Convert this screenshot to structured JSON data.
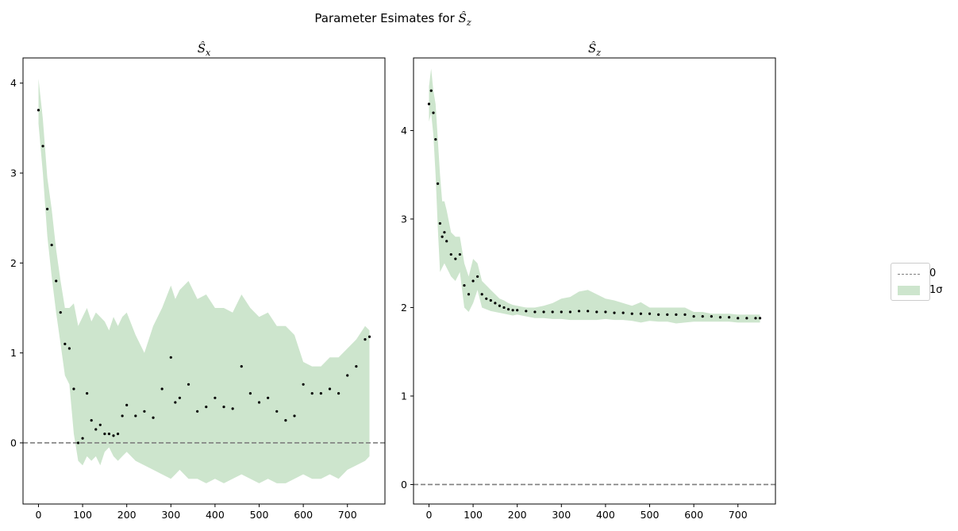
{
  "figure": {
    "suptitle_prefix": "Parameter Esimates for ",
    "suptitle_symbol": "Ŝ",
    "suptitle_sub": "z"
  },
  "legend": {
    "entries": [
      {
        "label": "0",
        "kind": "dashed-line",
        "color": "#7f7f7f"
      },
      {
        "label": "1σ",
        "kind": "band",
        "color": "#cde5cd"
      }
    ]
  },
  "colors": {
    "band": "#cde5cd",
    "points": "#000000",
    "zero_line": "#7f7f7f"
  },
  "chart_data": [
    {
      "type": "scatter",
      "title_symbol": "Ŝ",
      "title_sub": "x",
      "xlim": [
        -35,
        785
      ],
      "ylim": [
        -0.68,
        4.28
      ],
      "xticks": [
        0,
        100,
        200,
        300,
        400,
        500,
        600,
        700
      ],
      "yticks": [
        0,
        1,
        2,
        3,
        4
      ],
      "hline": 0,
      "estimate": {
        "x": [
          0,
          10,
          20,
          30,
          40,
          50,
          60,
          70,
          80,
          90,
          100,
          110,
          120,
          130,
          140,
          150,
          160,
          170,
          180,
          190,
          200,
          220,
          240,
          260,
          280,
          300,
          310,
          320,
          340,
          360,
          380,
          400,
          420,
          440,
          460,
          480,
          500,
          520,
          540,
          560,
          580,
          600,
          620,
          640,
          660,
          680,
          700,
          720,
          740,
          750
        ],
        "y": [
          3.7,
          3.3,
          2.6,
          2.2,
          1.8,
          1.45,
          1.1,
          1.05,
          0.6,
          0.0,
          0.05,
          0.55,
          0.25,
          0.15,
          0.2,
          0.1,
          0.1,
          0.08,
          0.1,
          0.3,
          0.42,
          0.3,
          0.35,
          0.28,
          0.6,
          0.95,
          0.45,
          0.5,
          0.65,
          0.35,
          0.4,
          0.5,
          0.4,
          0.38,
          0.85,
          0.55,
          0.45,
          0.5,
          0.35,
          0.25,
          0.3,
          0.65,
          0.55,
          0.55,
          0.6,
          0.55,
          0.75,
          0.85,
          1.15,
          1.18
        ]
      },
      "band_upper": [
        4.05,
        3.6,
        2.95,
        2.6,
        2.15,
        1.8,
        1.5,
        1.5,
        1.55,
        1.3,
        1.4,
        1.5,
        1.35,
        1.45,
        1.4,
        1.35,
        1.25,
        1.4,
        1.3,
        1.4,
        1.45,
        1.2,
        1.0,
        1.3,
        1.5,
        1.75,
        1.6,
        1.7,
        1.8,
        1.6,
        1.65,
        1.5,
        1.5,
        1.45,
        1.65,
        1.5,
        1.4,
        1.45,
        1.3,
        1.3,
        1.2,
        0.9,
        0.85,
        0.85,
        0.95,
        0.95,
        1.05,
        1.15,
        1.3,
        1.25
      ],
      "band_lower": [
        3.55,
        3.0,
        2.3,
        1.85,
        1.45,
        1.1,
        0.75,
        0.65,
        0.1,
        -0.2,
        -0.25,
        -0.15,
        -0.2,
        -0.15,
        -0.25,
        -0.1,
        -0.05,
        -0.15,
        -0.2,
        -0.15,
        -0.1,
        -0.2,
        -0.25,
        -0.3,
        -0.35,
        -0.4,
        -0.35,
        -0.3,
        -0.4,
        -0.4,
        -0.45,
        -0.4,
        -0.45,
        -0.4,
        -0.35,
        -0.4,
        -0.45,
        -0.4,
        -0.45,
        -0.45,
        -0.4,
        -0.35,
        -0.4,
        -0.4,
        -0.35,
        -0.4,
        -0.3,
        -0.25,
        -0.2,
        -0.15
      ]
    },
    {
      "type": "scatter",
      "title_symbol": "Ŝ",
      "title_sub": "z",
      "xlim": [
        -35,
        785
      ],
      "ylim": [
        -0.22,
        4.82
      ],
      "xticks": [
        0,
        100,
        200,
        300,
        400,
        500,
        600,
        700
      ],
      "yticks": [
        0,
        1,
        2,
        3,
        4
      ],
      "hline": 0,
      "estimate": {
        "x": [
          0,
          5,
          10,
          15,
          20,
          25,
          30,
          35,
          40,
          50,
          60,
          70,
          80,
          90,
          100,
          110,
          120,
          130,
          140,
          150,
          160,
          170,
          180,
          190,
          200,
          220,
          240,
          260,
          280,
          300,
          320,
          340,
          360,
          380,
          400,
          420,
          440,
          460,
          480,
          500,
          520,
          540,
          560,
          580,
          600,
          620,
          640,
          660,
          680,
          700,
          720,
          740,
          750
        ],
        "y": [
          4.3,
          4.45,
          4.2,
          3.9,
          3.4,
          2.95,
          2.8,
          2.85,
          2.75,
          2.6,
          2.55,
          2.6,
          2.25,
          2.15,
          2.3,
          2.35,
          2.15,
          2.1,
          2.08,
          2.05,
          2.02,
          2.0,
          1.98,
          1.97,
          1.97,
          1.96,
          1.95,
          1.95,
          1.95,
          1.95,
          1.95,
          1.96,
          1.96,
          1.95,
          1.95,
          1.94,
          1.94,
          1.93,
          1.93,
          1.93,
          1.92,
          1.92,
          1.92,
          1.92,
          1.9,
          1.9,
          1.9,
          1.89,
          1.89,
          1.88,
          1.88,
          1.88,
          1.88
        ]
      },
      "band_upper": [
        4.5,
        4.7,
        4.45,
        4.3,
        3.9,
        3.5,
        3.2,
        3.2,
        3.1,
        2.85,
        2.8,
        2.8,
        2.5,
        2.35,
        2.55,
        2.5,
        2.3,
        2.25,
        2.2,
        2.15,
        2.1,
        2.08,
        2.05,
        2.03,
        2.02,
        2.0,
        2.0,
        2.02,
        2.05,
        2.1,
        2.12,
        2.18,
        2.2,
        2.15,
        2.1,
        2.08,
        2.05,
        2.02,
        2.06,
        2.0,
        2.0,
        2.0,
        2.0,
        2.0,
        1.95,
        1.95,
        1.93,
        1.93,
        1.93,
        1.92,
        1.92,
        1.92,
        1.92
      ],
      "band_lower": [
        4.1,
        4.2,
        3.95,
        3.5,
        2.9,
        2.4,
        2.45,
        2.5,
        2.45,
        2.35,
        2.3,
        2.4,
        2.0,
        1.95,
        2.05,
        2.2,
        2.0,
        1.98,
        1.96,
        1.95,
        1.94,
        1.93,
        1.92,
        1.91,
        1.92,
        1.9,
        1.88,
        1.88,
        1.87,
        1.87,
        1.86,
        1.86,
        1.86,
        1.86,
        1.87,
        1.86,
        1.86,
        1.85,
        1.83,
        1.85,
        1.84,
        1.84,
        1.82,
        1.83,
        1.84,
        1.84,
        1.84,
        1.84,
        1.84,
        1.83,
        1.83,
        1.83,
        1.83
      ]
    }
  ]
}
